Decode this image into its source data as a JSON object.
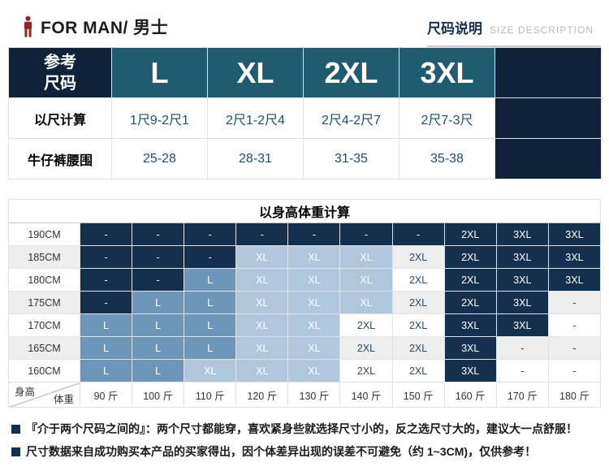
{
  "header": {
    "brand_label": "FOR MAN/ 男士",
    "title_cn": "尺码说明",
    "title_en": "SIZE DESCRIPTION"
  },
  "size_table": {
    "corner_line1": "参考",
    "corner_line2": "尺码",
    "sizes": [
      "L",
      "XL",
      "2XL",
      "3XL"
    ],
    "rows": [
      {
        "label": "以尺计算",
        "values": [
          "1尺9-2尺1",
          "2尺1-2尺4",
          "2尺4-2尺7",
          "2尺7-3尺"
        ]
      },
      {
        "label": "牛仔裤腰围",
        "values": [
          "25-28",
          "28-31",
          "31-35",
          "35-38"
        ]
      }
    ]
  },
  "matrix": {
    "title": "以身高体重计算",
    "corner_row_label": "身高",
    "corner_col_label": "体重",
    "weights": [
      "90 斤",
      "100 斤",
      "110 斤",
      "120 斤",
      "130 斤",
      "140 斤",
      "150 斤",
      "160 斤",
      "170 斤",
      "180 斤"
    ],
    "heights": [
      "190CM",
      "185CM",
      "180CM",
      "175CM",
      "170CM",
      "165CM",
      "160CM"
    ],
    "cell_style_legend": {
      "d": "dark-navy",
      "m": "medium-blue",
      "l": "light-blue",
      "w": "plain-row-background"
    },
    "cells": [
      [
        "d:-",
        "d:-",
        "d:-",
        "d:-",
        "d:-",
        "d:-",
        "d:-",
        "d:2XL",
        "d:3XL",
        "d:3XL"
      ],
      [
        "d:-",
        "d:-",
        "d:-",
        "l:XL",
        "l:XL",
        "l:XL",
        "w:2XL",
        "d:2XL",
        "d:3XL",
        "d:3XL"
      ],
      [
        "d:-",
        "d:-",
        "m:L",
        "l:XL",
        "l:XL",
        "l:XL",
        "w:2XL",
        "d:2XL",
        "d:3XL",
        "d:3XL"
      ],
      [
        "d:-",
        "m:L",
        "m:L",
        "l:XL",
        "l:XL",
        "l:XL",
        "w:2XL",
        "d:2XL",
        "d:3XL",
        "w:-"
      ],
      [
        "m:L",
        "m:L",
        "m:L",
        "l:XL",
        "l:XL",
        "w:2XL",
        "w:2XL",
        "d:3XL",
        "d:3XL",
        "w:-"
      ],
      [
        "m:L",
        "m:L",
        "m:L",
        "l:XL",
        "l:XL",
        "w:2XL",
        "w:2XL",
        "d:3XL",
        "w:-",
        "w:-"
      ],
      [
        "m:L",
        "m:L",
        "l:XL",
        "l:XL",
        "l:XL",
        "w:2XL",
        "w:2XL",
        "d:3XL",
        "w:-",
        "w:-"
      ]
    ]
  },
  "notes": [
    "『介于两个尺码之间的』：两个尺寸都能穿，喜欢紧身些就选择尺寸小的，反之选尺寸大的，建议大一点舒服！",
    "尺寸数据来自成功购买本产品的买家得出，因个体差异出现的误差不可避免（约 1~3CM)，仅供参考！"
  ],
  "colors": {
    "navy": "#0e2338",
    "teal": "#1f5c70",
    "cell_dark": "#14304f",
    "cell_medium_blue": "#6d96bb",
    "cell_light_blue": "#b1c8dc",
    "value_text": "#1f4f68",
    "row_stripe": "#ededed",
    "man_icon": "#8a2a22"
  }
}
